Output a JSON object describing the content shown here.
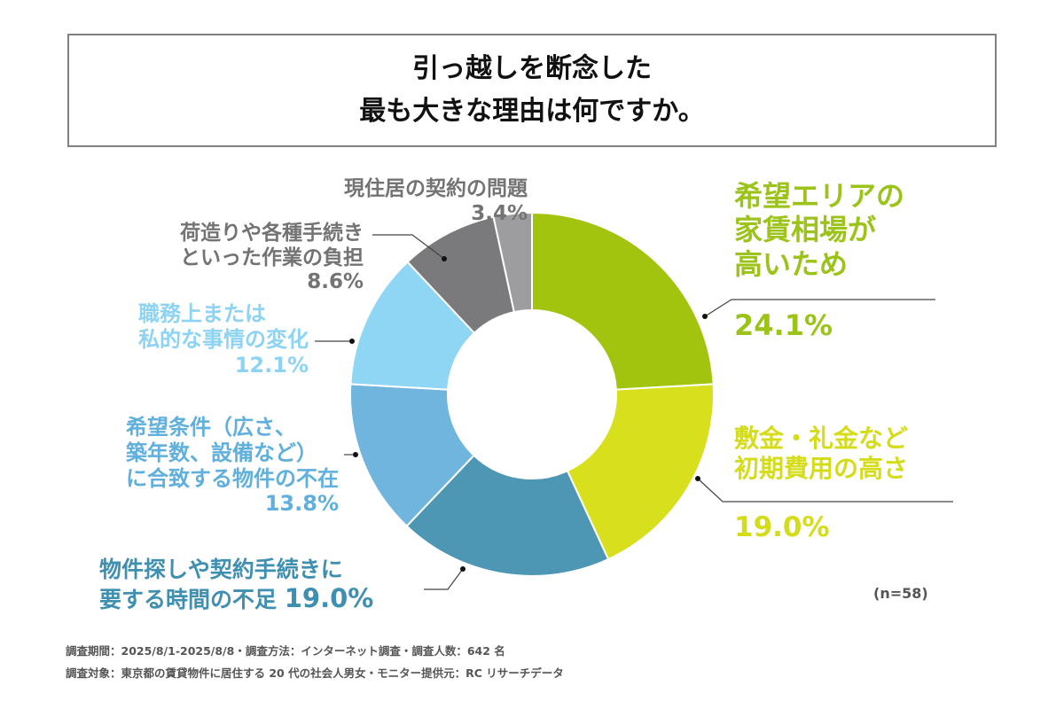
{
  "title": {
    "line1": "引っ越しを断念した",
    "line2": "最も大きな理由は何ですか。"
  },
  "chart_data": {
    "type": "pie",
    "donut": true,
    "start": "top, clockwise",
    "slices": [
      {
        "label": "希望エリアの家賃相場が高いため",
        "value": 24.1,
        "pct": "24.1%",
        "color": "#a2c40e"
      },
      {
        "label": "敷金・礼金など初期費用の高さ",
        "value": 19.0,
        "pct": "19.0%",
        "color": "#d8df1c"
      },
      {
        "label": "物件探しや契約手続きに要する時間の不足",
        "value": 19.0,
        "pct": "19.0%",
        "color": "#4d97b5"
      },
      {
        "label": "希望条件（広さ、築年数、設備など）に合致する物件の不在",
        "value": 13.8,
        "pct": "13.8%",
        "color": "#6fb5dd"
      },
      {
        "label": "職務上または私的な事情の変化",
        "value": 12.1,
        "pct": "12.1%",
        "color": "#8fd6f5"
      },
      {
        "label": "荷造りや各種手続きといった作業の負担",
        "value": 8.6,
        "pct": "8.6%",
        "color": "#7a7a7c"
      },
      {
        "label": "現住居の契約の問題",
        "value": 3.4,
        "pct": "3.4%",
        "color": "#9d9d9f"
      }
    ],
    "label_lines": {
      "s0": [
        "希望エリアの",
        "家賃相場が",
        "高いため"
      ],
      "s1": [
        "敷金・礼金など",
        "初期費用の高さ"
      ],
      "s2": [
        "物件探しや契約手続きに",
        "要する時間の不足"
      ],
      "s3": [
        "希望条件（広さ、",
        "築年数、設備など）",
        "に合致する物件の不在"
      ],
      "s4": [
        "職務上または",
        "私的な事情の変化"
      ],
      "s5": [
        "荷造りや各種手続き",
        "といった作業の負担"
      ],
      "s6": [
        "現住居の契約の問題"
      ]
    },
    "n": "(n=58)"
  },
  "footer": {
    "line1": "調査期間：2025/8/1-2025/8/8・調査方法：インターネット調査・調査人数：642 名",
    "line2": "調査対象：東京都の賃貸物件に居住する 20 代の社会人男女・モニター提供元：RC リサーチデータ"
  }
}
